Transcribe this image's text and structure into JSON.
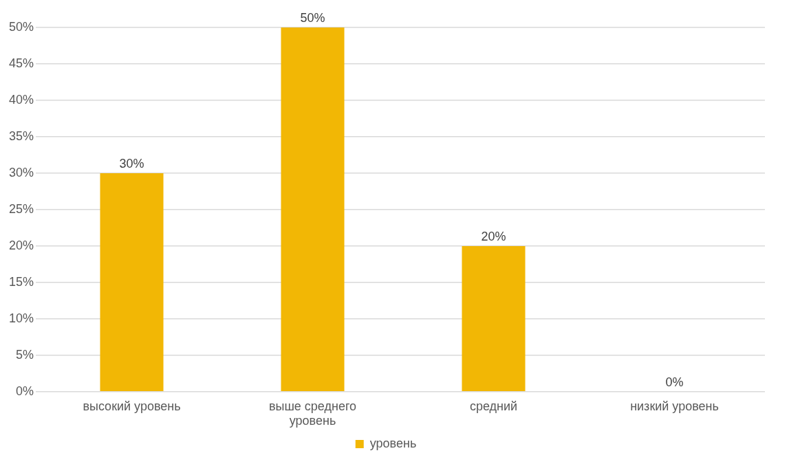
{
  "chart_data": {
    "type": "bar",
    "categories": [
      "высокий уровень",
      "выше среднего уровень",
      "средний",
      "низкий уровень"
    ],
    "series": [
      {
        "name": "уровень",
        "color": "#f2b705",
        "values": [
          30,
          50,
          20,
          0
        ],
        "value_labels": [
          "30%",
          "50%",
          "20%",
          "0%"
        ]
      }
    ],
    "ylim": [
      0,
      50
    ],
    "yticks": [
      {
        "value": 0,
        "label": "0%"
      },
      {
        "value": 5,
        "label": "5%"
      },
      {
        "value": 10,
        "label": "10%"
      },
      {
        "value": 15,
        "label": "15%"
      },
      {
        "value": 20,
        "label": "20%"
      },
      {
        "value": 25,
        "label": "25%"
      },
      {
        "value": 30,
        "label": "30%"
      },
      {
        "value": 35,
        "label": "35%"
      },
      {
        "value": 40,
        "label": "40%"
      },
      {
        "value": 45,
        "label": "45%"
      },
      {
        "value": 50,
        "label": "50%"
      }
    ],
    "grid": "y",
    "legend": "bottom"
  }
}
